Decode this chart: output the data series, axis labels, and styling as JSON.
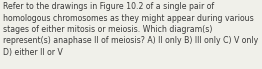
{
  "lines": [
    "Refer to the drawings in Figure 10.2 of a single pair of",
    "homologous chromosomes as they might appear during various",
    "stages of either mitosis or meiosis. Which diagram(s)",
    "represent(s) anaphase II of meiosis? A) II only B) III only C) V only",
    "D) either II or V"
  ],
  "font_size": 5.6,
  "font_family": "sans-serif",
  "text_color": "#3a3a3a",
  "background_color": "#f0f0ea",
  "fig_width": 2.62,
  "fig_height": 0.69,
  "dpi": 100
}
